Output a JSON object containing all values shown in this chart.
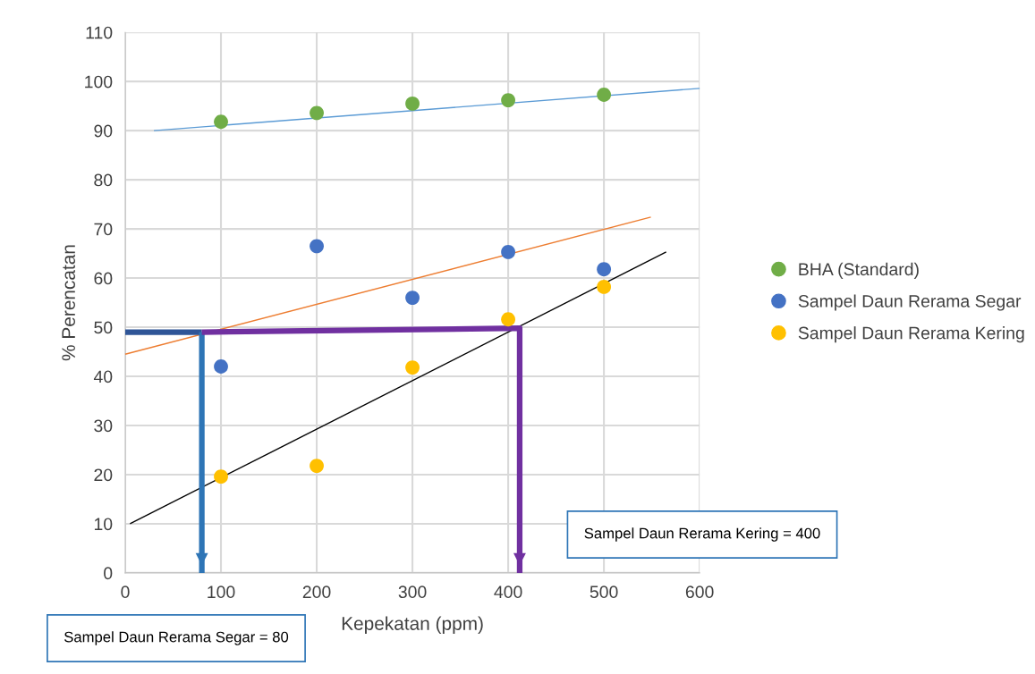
{
  "chart_data": {
    "type": "scatter",
    "xlabel": "Kepekatan (ppm)",
    "ylabel": "% Perencatan",
    "xlim": [
      0,
      600
    ],
    "xticks": [
      0,
      100,
      200,
      300,
      400,
      500,
      600
    ],
    "ylim": [
      0,
      110
    ],
    "yticks": [
      0,
      10,
      20,
      30,
      40,
      50,
      60,
      70,
      80,
      90,
      100,
      110
    ],
    "grid": true,
    "legend": "right",
    "series": [
      {
        "name": "BHA (Standard)",
        "marker": "circle",
        "color": "#70ad47",
        "x": [
          100,
          200,
          300,
          400,
          500
        ],
        "values": [
          91.8,
          93.6,
          95.5,
          96.2,
          97.3
        ]
      },
      {
        "name": "Sampel Daun Rerama Segar",
        "marker": "circle",
        "color": "#4472c4",
        "x": [
          100,
          200,
          300,
          400,
          500
        ],
        "values": [
          42,
          66.5,
          56,
          65.3,
          61.8
        ]
      },
      {
        "name": "Sampel Daun Rerama Kering",
        "marker": "circle",
        "color": "#ffc000",
        "x": [
          100,
          200,
          300,
          400,
          500
        ],
        "values": [
          19.6,
          21.8,
          41.8,
          51.6,
          58.2
        ]
      },
      {
        "type": "line",
        "color": "#5b9bd5",
        "x": [
          30,
          600
        ],
        "values": [
          90,
          98.6
        ]
      },
      {
        "type": "line",
        "color": "#ed7d31",
        "x": [
          0,
          549
        ],
        "values": [
          44.5,
          72.4
        ]
      },
      {
        "type": "line",
        "color": "#000000",
        "x": [
          5,
          565
        ],
        "values": [
          10,
          65.3
        ]
      },
      {
        "type": "line",
        "color": "#2f5597",
        "x": [
          0,
          80
        ],
        "values": [
          49,
          49
        ]
      },
      {
        "type": "line",
        "color": "#2e75b6",
        "x": [
          80,
          80
        ],
        "values": [
          49,
          0
        ]
      },
      {
        "type": "line",
        "color": "#7030a0",
        "x": [
          80,
          412,
          412
        ],
        "values": [
          49,
          49.8,
          0
        ]
      }
    ],
    "annotations": [
      "Sampel Daun Rerama Segar = 80",
      "Sampel Daun Rerama Kering = 400"
    ]
  }
}
